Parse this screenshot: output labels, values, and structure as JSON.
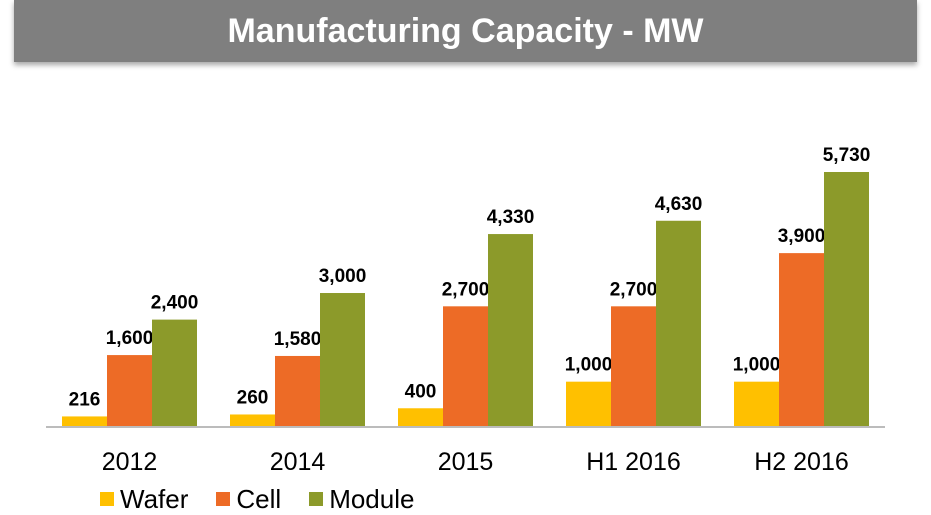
{
  "chart_data": {
    "type": "bar",
    "title": "Manufacturing Capacity - MW",
    "xlabel": "",
    "ylabel": "",
    "categories": [
      "2012",
      "2014",
      "2015",
      "H1 2016",
      "H2 2016"
    ],
    "series": [
      {
        "name": "Wafer",
        "color": "#ffc000",
        "values": [
          216,
          260,
          400,
          1000,
          1000
        ]
      },
      {
        "name": "Cell",
        "color": "#ed6b26",
        "values": [
          1600,
          1580,
          2700,
          2700,
          3900
        ]
      },
      {
        "name": "Module",
        "color": "#8c9a2a",
        "values": [
          2400,
          3000,
          4330,
          4630,
          5730
        ]
      }
    ],
    "data_labels": [
      [
        "216",
        "260",
        "400",
        "1,000",
        "1,000"
      ],
      [
        "1,600",
        "1,580",
        "2,700",
        "2,700",
        "3,900"
      ],
      [
        "2,400",
        "3,000",
        "4,330",
        "4,630",
        "5,730"
      ]
    ],
    "ylim": [
      0,
      5730
    ],
    "grid": false,
    "legend_position": "bottom-left"
  }
}
